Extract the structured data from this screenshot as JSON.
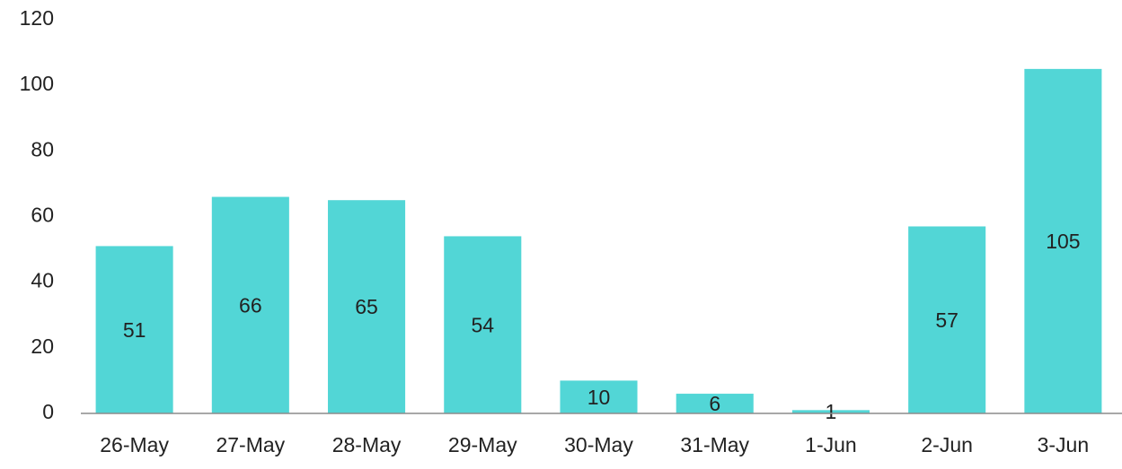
{
  "chart_data": {
    "type": "bar",
    "categories": [
      "26-May",
      "27-May",
      "28-May",
      "29-May",
      "30-May",
      "31-May",
      "1-Jun",
      "2-Jun",
      "3-Jun"
    ],
    "values": [
      51,
      66,
      65,
      54,
      10,
      6,
      1,
      57,
      105
    ],
    "color": "#52d6d6",
    "ylim": [
      0,
      120
    ],
    "yticks": [
      0,
      20,
      40,
      60,
      80,
      100,
      120
    ],
    "grid": false
  }
}
